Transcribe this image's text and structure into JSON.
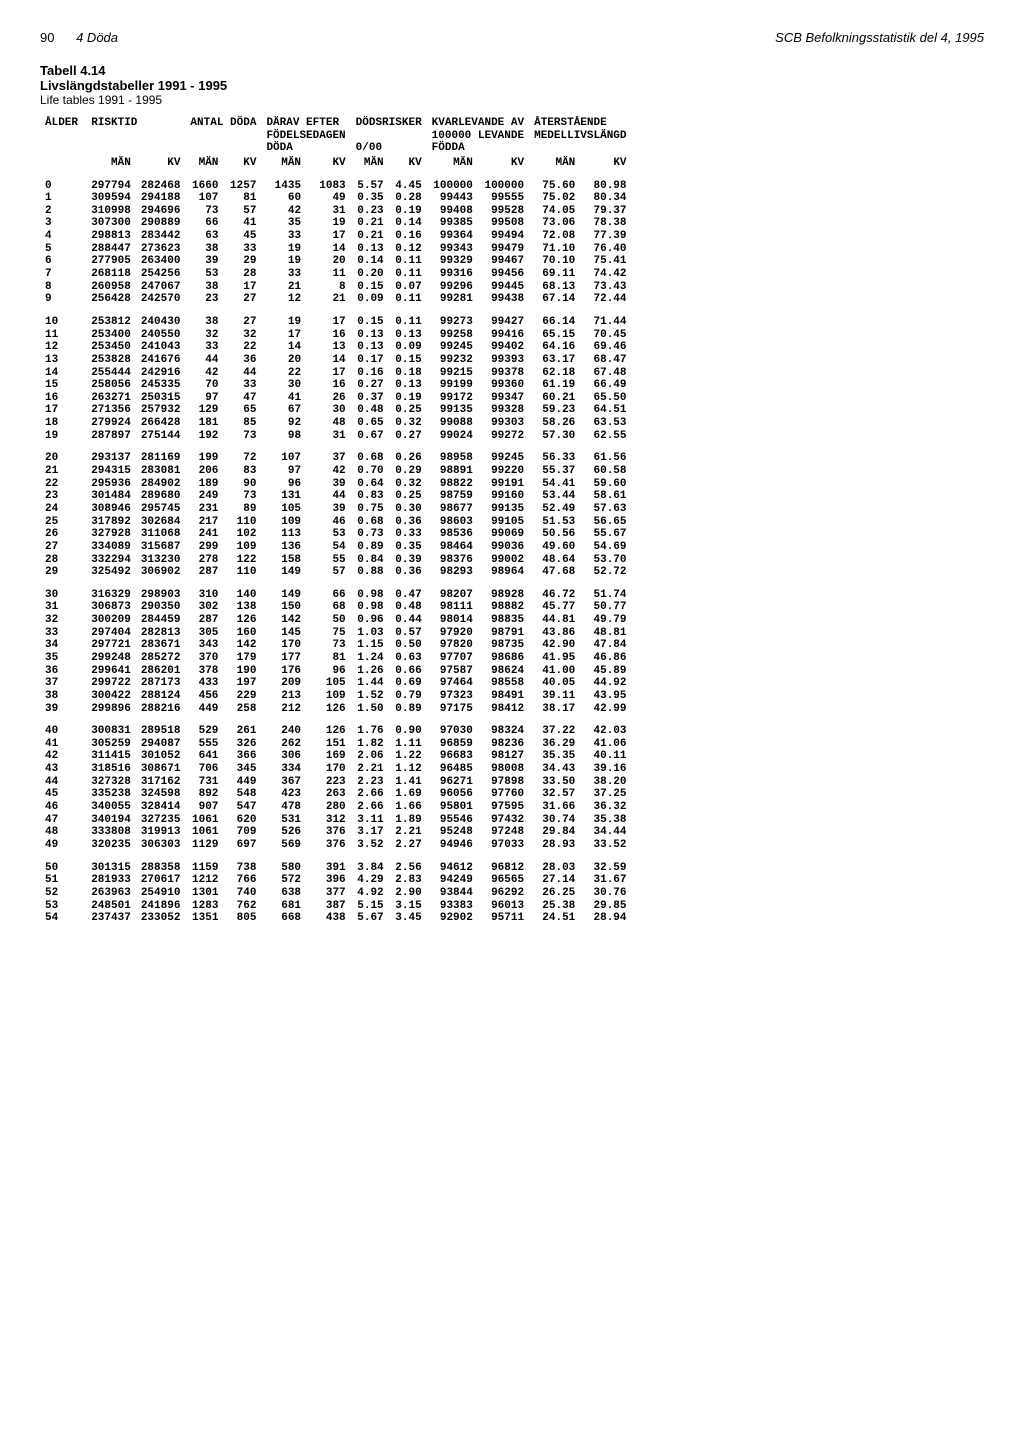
{
  "header": {
    "page_number": "90",
    "section": "4 Döda",
    "source": "SCB Befolkningsstatistik del 4, 1995"
  },
  "titles": {
    "t1": "Tabell 4.14",
    "t2": "Livslängdstabeller 1991 - 1995",
    "t3": "Life tables 1991 - 1995"
  },
  "columns": {
    "group_headers": [
      "ÅLDER",
      "RISKTID",
      "ANTAL DÖDA",
      "DÄRAV EFTER\nFÖDELSEDAGEN\nDÖDA",
      "DÖDSRISKER\n\n0/00",
      "KVARLEVANDE AV\n100000 LEVANDE\nFÖDDA",
      "ÅTERSTÅENDE\nMEDELLIVSLÄNGD"
    ],
    "sub": [
      "",
      "MÄN",
      "KV",
      "MÄN",
      "KV",
      "MÄN",
      "KV",
      "MÄN",
      "KV",
      "MÄN",
      "KV",
      "MÄN",
      "KV"
    ]
  },
  "groups": [
    [
      [
        "0",
        "297794",
        "282468",
        "1660",
        "1257",
        "1435",
        "1083",
        "5.57",
        "4.45",
        "100000",
        "100000",
        "75.60",
        "80.98"
      ],
      [
        "1",
        "309594",
        "294188",
        "107",
        "81",
        "60",
        "49",
        "0.35",
        "0.28",
        "99443",
        "99555",
        "75.02",
        "80.34"
      ],
      [
        "2",
        "310998",
        "294696",
        "73",
        "57",
        "42",
        "31",
        "0.23",
        "0.19",
        "99408",
        "99528",
        "74.05",
        "79.37"
      ],
      [
        "3",
        "307300",
        "290889",
        "66",
        "41",
        "35",
        "19",
        "0.21",
        "0.14",
        "99385",
        "99508",
        "73.06",
        "78.38"
      ],
      [
        "4",
        "298813",
        "283442",
        "63",
        "45",
        "33",
        "17",
        "0.21",
        "0.16",
        "99364",
        "99494",
        "72.08",
        "77.39"
      ],
      [
        "5",
        "288447",
        "273623",
        "38",
        "33",
        "19",
        "14",
        "0.13",
        "0.12",
        "99343",
        "99479",
        "71.10",
        "76.40"
      ],
      [
        "6",
        "277905",
        "263400",
        "39",
        "29",
        "19",
        "20",
        "0.14",
        "0.11",
        "99329",
        "99467",
        "70.10",
        "75.41"
      ],
      [
        "7",
        "268118",
        "254256",
        "53",
        "28",
        "33",
        "11",
        "0.20",
        "0.11",
        "99316",
        "99456",
        "69.11",
        "74.42"
      ],
      [
        "8",
        "260958",
        "247067",
        "38",
        "17",
        "21",
        "8",
        "0.15",
        "0.07",
        "99296",
        "99445",
        "68.13",
        "73.43"
      ],
      [
        "9",
        "256428",
        "242570",
        "23",
        "27",
        "12",
        "21",
        "0.09",
        "0.11",
        "99281",
        "99438",
        "67.14",
        "72.44"
      ]
    ],
    [
      [
        "10",
        "253812",
        "240430",
        "38",
        "27",
        "19",
        "17",
        "0.15",
        "0.11",
        "99273",
        "99427",
        "66.14",
        "71.44"
      ],
      [
        "11",
        "253400",
        "240550",
        "32",
        "32",
        "17",
        "16",
        "0.13",
        "0.13",
        "99258",
        "99416",
        "65.15",
        "70.45"
      ],
      [
        "12",
        "253450",
        "241043",
        "33",
        "22",
        "14",
        "13",
        "0.13",
        "0.09",
        "99245",
        "99402",
        "64.16",
        "69.46"
      ],
      [
        "13",
        "253828",
        "241676",
        "44",
        "36",
        "20",
        "14",
        "0.17",
        "0.15",
        "99232",
        "99393",
        "63.17",
        "68.47"
      ],
      [
        "14",
        "255444",
        "242916",
        "42",
        "44",
        "22",
        "17",
        "0.16",
        "0.18",
        "99215",
        "99378",
        "62.18",
        "67.48"
      ],
      [
        "15",
        "258056",
        "245335",
        "70",
        "33",
        "30",
        "16",
        "0.27",
        "0.13",
        "99199",
        "99360",
        "61.19",
        "66.49"
      ],
      [
        "16",
        "263271",
        "250315",
        "97",
        "47",
        "41",
        "26",
        "0.37",
        "0.19",
        "99172",
        "99347",
        "60.21",
        "65.50"
      ],
      [
        "17",
        "271356",
        "257932",
        "129",
        "65",
        "67",
        "30",
        "0.48",
        "0.25",
        "99135",
        "99328",
        "59.23",
        "64.51"
      ],
      [
        "18",
        "279924",
        "266428",
        "181",
        "85",
        "92",
        "48",
        "0.65",
        "0.32",
        "99088",
        "99303",
        "58.26",
        "63.53"
      ],
      [
        "19",
        "287897",
        "275144",
        "192",
        "73",
        "98",
        "31",
        "0.67",
        "0.27",
        "99024",
        "99272",
        "57.30",
        "62.55"
      ]
    ],
    [
      [
        "20",
        "293137",
        "281169",
        "199",
        "72",
        "107",
        "37",
        "0.68",
        "0.26",
        "98958",
        "99245",
        "56.33",
        "61.56"
      ],
      [
        "21",
        "294315",
        "283081",
        "206",
        "83",
        "97",
        "42",
        "0.70",
        "0.29",
        "98891",
        "99220",
        "55.37",
        "60.58"
      ],
      [
        "22",
        "295936",
        "284902",
        "189",
        "90",
        "96",
        "39",
        "0.64",
        "0.32",
        "98822",
        "99191",
        "54.41",
        "59.60"
      ],
      [
        "23",
        "301484",
        "289680",
        "249",
        "73",
        "131",
        "44",
        "0.83",
        "0.25",
        "98759",
        "99160",
        "53.44",
        "58.61"
      ],
      [
        "24",
        "308946",
        "295745",
        "231",
        "89",
        "105",
        "39",
        "0.75",
        "0.30",
        "98677",
        "99135",
        "52.49",
        "57.63"
      ],
      [
        "25",
        "317892",
        "302684",
        "217",
        "110",
        "109",
        "46",
        "0.68",
        "0.36",
        "98603",
        "99105",
        "51.53",
        "56.65"
      ],
      [
        "26",
        "327928",
        "311068",
        "241",
        "102",
        "113",
        "53",
        "0.73",
        "0.33",
        "98536",
        "99069",
        "50.56",
        "55.67"
      ],
      [
        "27",
        "334089",
        "315687",
        "299",
        "109",
        "136",
        "54",
        "0.89",
        "0.35",
        "98464",
        "99036",
        "49.60",
        "54.69"
      ],
      [
        "28",
        "332294",
        "313230",
        "278",
        "122",
        "158",
        "55",
        "0.84",
        "0.39",
        "98376",
        "99002",
        "48.64",
        "53.70"
      ],
      [
        "29",
        "325492",
        "306902",
        "287",
        "110",
        "149",
        "57",
        "0.88",
        "0.36",
        "98293",
        "98964",
        "47.68",
        "52.72"
      ]
    ],
    [
      [
        "30",
        "316329",
        "298903",
        "310",
        "140",
        "149",
        "66",
        "0.98",
        "0.47",
        "98207",
        "98928",
        "46.72",
        "51.74"
      ],
      [
        "31",
        "306873",
        "290350",
        "302",
        "138",
        "150",
        "68",
        "0.98",
        "0.48",
        "98111",
        "98882",
        "45.77",
        "50.77"
      ],
      [
        "32",
        "300209",
        "284459",
        "287",
        "126",
        "142",
        "50",
        "0.96",
        "0.44",
        "98014",
        "98835",
        "44.81",
        "49.79"
      ],
      [
        "33",
        "297404",
        "282813",
        "305",
        "160",
        "145",
        "75",
        "1.03",
        "0.57",
        "97920",
        "98791",
        "43.86",
        "48.81"
      ],
      [
        "34",
        "297721",
        "283671",
        "343",
        "142",
        "170",
        "73",
        "1.15",
        "0.50",
        "97820",
        "98735",
        "42.90",
        "47.84"
      ],
      [
        "35",
        "299248",
        "285272",
        "370",
        "179",
        "177",
        "81",
        "1.24",
        "0.63",
        "97707",
        "98686",
        "41.95",
        "46.86"
      ],
      [
        "36",
        "299641",
        "286201",
        "378",
        "190",
        "176",
        "96",
        "1.26",
        "0.66",
        "97587",
        "98624",
        "41.00",
        "45.89"
      ],
      [
        "37",
        "299722",
        "287173",
        "433",
        "197",
        "209",
        "105",
        "1.44",
        "0.69",
        "97464",
        "98558",
        "40.05",
        "44.92"
      ],
      [
        "38",
        "300422",
        "288124",
        "456",
        "229",
        "213",
        "109",
        "1.52",
        "0.79",
        "97323",
        "98491",
        "39.11",
        "43.95"
      ],
      [
        "39",
        "299896",
        "288216",
        "449",
        "258",
        "212",
        "126",
        "1.50",
        "0.89",
        "97175",
        "98412",
        "38.17",
        "42.99"
      ]
    ],
    [
      [
        "40",
        "300831",
        "289518",
        "529",
        "261",
        "240",
        "126",
        "1.76",
        "0.90",
        "97030",
        "98324",
        "37.22",
        "42.03"
      ],
      [
        "41",
        "305259",
        "294087",
        "555",
        "326",
        "262",
        "151",
        "1.82",
        "1.11",
        "96859",
        "98236",
        "36.29",
        "41.06"
      ],
      [
        "42",
        "311415",
        "301052",
        "641",
        "366",
        "306",
        "169",
        "2.06",
        "1.22",
        "96683",
        "98127",
        "35.35",
        "40.11"
      ],
      [
        "43",
        "318516",
        "308671",
        "706",
        "345",
        "334",
        "170",
        "2.21",
        "1.12",
        "96485",
        "98008",
        "34.43",
        "39.16"
      ],
      [
        "44",
        "327328",
        "317162",
        "731",
        "449",
        "367",
        "223",
        "2.23",
        "1.41",
        "96271",
        "97898",
        "33.50",
        "38.20"
      ],
      [
        "45",
        "335238",
        "324598",
        "892",
        "548",
        "423",
        "263",
        "2.66",
        "1.69",
        "96056",
        "97760",
        "32.57",
        "37.25"
      ],
      [
        "46",
        "340055",
        "328414",
        "907",
        "547",
        "478",
        "280",
        "2.66",
        "1.66",
        "95801",
        "97595",
        "31.66",
        "36.32"
      ],
      [
        "47",
        "340194",
        "327235",
        "1061",
        "620",
        "531",
        "312",
        "3.11",
        "1.89",
        "95546",
        "97432",
        "30.74",
        "35.38"
      ],
      [
        "48",
        "333808",
        "319913",
        "1061",
        "709",
        "526",
        "376",
        "3.17",
        "2.21",
        "95248",
        "97248",
        "29.84",
        "34.44"
      ],
      [
        "49",
        "320235",
        "306303",
        "1129",
        "697",
        "569",
        "376",
        "3.52",
        "2.27",
        "94946",
        "97033",
        "28.93",
        "33.52"
      ]
    ],
    [
      [
        "50",
        "301315",
        "288358",
        "1159",
        "738",
        "580",
        "391",
        "3.84",
        "2.56",
        "94612",
        "96812",
        "28.03",
        "32.59"
      ],
      [
        "51",
        "281933",
        "270617",
        "1212",
        "766",
        "572",
        "396",
        "4.29",
        "2.83",
        "94249",
        "96565",
        "27.14",
        "31.67"
      ],
      [
        "52",
        "263963",
        "254910",
        "1301",
        "740",
        "638",
        "377",
        "4.92",
        "2.90",
        "93844",
        "96292",
        "26.25",
        "30.76"
      ],
      [
        "53",
        "248501",
        "241896",
        "1283",
        "762",
        "681",
        "387",
        "5.15",
        "3.15",
        "93383",
        "96013",
        "25.38",
        "29.85"
      ],
      [
        "54",
        "237437",
        "233052",
        "1351",
        "805",
        "668",
        "438",
        "5.67",
        "3.45",
        "92902",
        "95711",
        "24.51",
        "28.94"
      ]
    ]
  ]
}
